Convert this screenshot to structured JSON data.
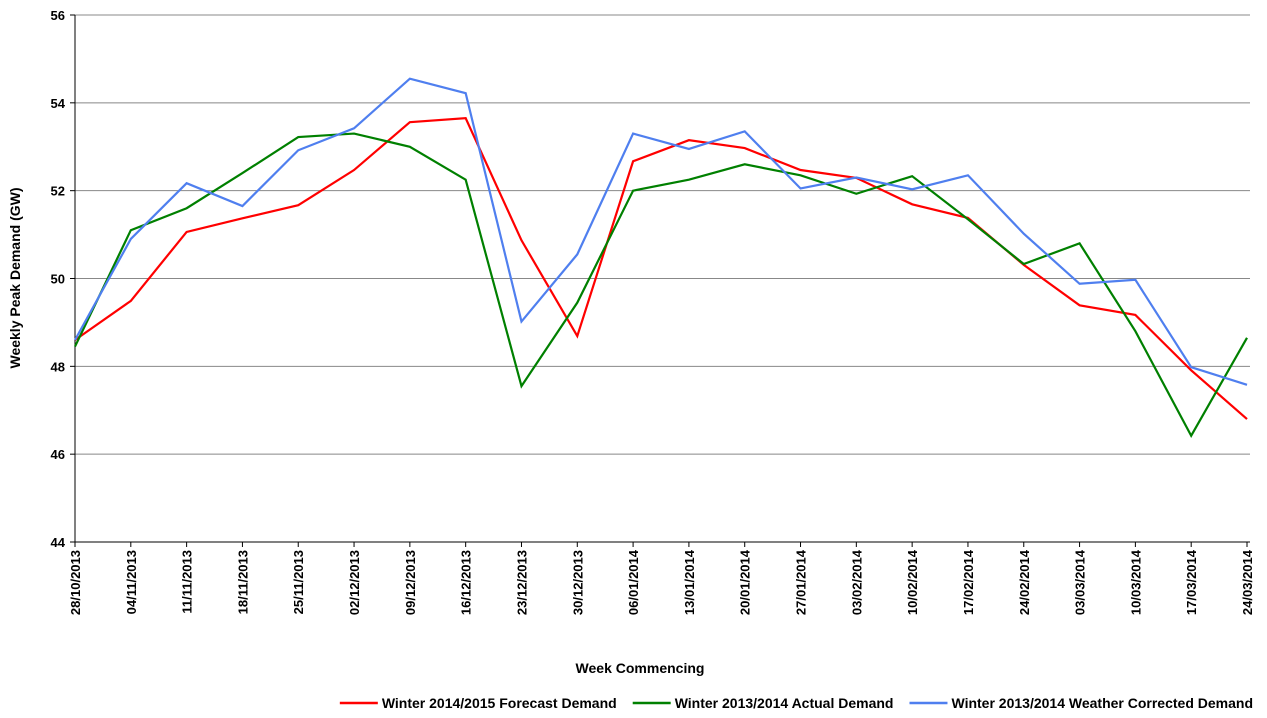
{
  "chart_data": {
    "type": "line",
    "x_label": "Week Commencing",
    "y_label": "Weekly Peak Demand (GW)",
    "categories": [
      "28/10/2013",
      "04/11/2013",
      "11/11/2013",
      "18/11/2013",
      "25/11/2013",
      "02/12/2013",
      "09/12/2013",
      "16/12/2013",
      "23/12/2013",
      "30/12/2013",
      "06/01/2014",
      "13/01/2014",
      "20/01/2014",
      "27/01/2014",
      "03/02/2014",
      "10/02/2014",
      "17/02/2014",
      "24/02/2014",
      "03/03/2014",
      "10/03/2014",
      "17/03/2014",
      "24/03/2014"
    ],
    "series": [
      {
        "name": "Winter 2014/2015 Forecast Demand",
        "color": "#ff0000",
        "values": [
          48.6,
          49.49,
          51.06,
          51.37,
          51.67,
          52.47,
          53.56,
          53.65,
          50.87,
          48.69,
          52.67,
          53.15,
          52.97,
          52.47,
          52.29,
          51.69,
          51.38,
          50.31,
          49.39,
          49.17,
          47.91,
          46.8
        ]
      },
      {
        "name": "Winter 2013/2014 Actual Demand",
        "color": "#008000",
        "values": [
          48.45,
          51.1,
          51.6,
          52.4,
          53.22,
          53.3,
          53.0,
          52.25,
          47.55,
          49.45,
          52.0,
          52.25,
          52.6,
          52.35,
          51.93,
          52.33,
          51.35,
          50.33,
          50.8,
          48.8,
          46.42,
          48.65
        ]
      },
      {
        "name": "Winter 2013/2014 Weather Corrected Demand",
        "color": "#4f7fef",
        "values": [
          48.6,
          50.9,
          52.17,
          51.65,
          52.92,
          53.42,
          54.55,
          54.22,
          49.02,
          50.55,
          53.3,
          52.95,
          53.35,
          52.05,
          52.3,
          52.03,
          52.35,
          51.02,
          49.88,
          49.97,
          47.98,
          47.58
        ]
      }
    ],
    "ylim": [
      44,
      56
    ],
    "yticks": [
      44,
      46,
      48,
      50,
      52,
      54,
      56
    ],
    "grid": true
  }
}
